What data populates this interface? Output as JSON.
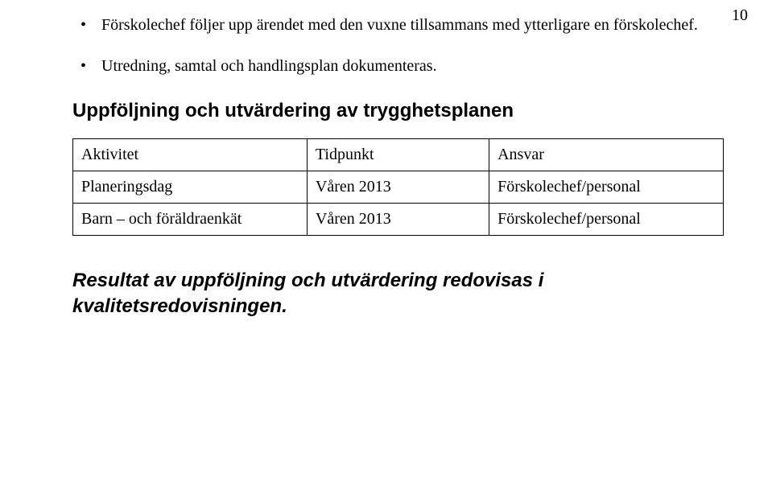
{
  "page_number": "10",
  "bullets": [
    "Förskolechef följer upp ärendet med den vuxne tillsammans med ytterligare en förskolechef.",
    "Utredning, samtal och handlingsplan dokumenteras."
  ],
  "section_heading": "Uppföljning och utvärdering av trygghetsplanen",
  "table": {
    "columns": [
      "Aktivitet",
      "Tidpunkt",
      "Ansvar"
    ],
    "column_widths_pct": [
      36,
      28,
      36
    ],
    "rows": [
      [
        "Planeringsdag",
        "Våren 2013",
        "Förskolechef/personal"
      ],
      [
        "Barn och föräldraenkät",
        "Våren 2013",
        "Förskolechef/personal"
      ]
    ],
    "row_labels_dash_after_first_word": [
      false,
      true
    ],
    "border_color": "#000000",
    "cell_fontsize": 20
  },
  "closing_text": "Resultat av uppföljning och utvärdering redovisas i kvalitetsredovisningen.",
  "colors": {
    "background": "#ffffff",
    "text": "#000000"
  },
  "fonts": {
    "body": "Times New Roman",
    "headings": "Arial"
  }
}
